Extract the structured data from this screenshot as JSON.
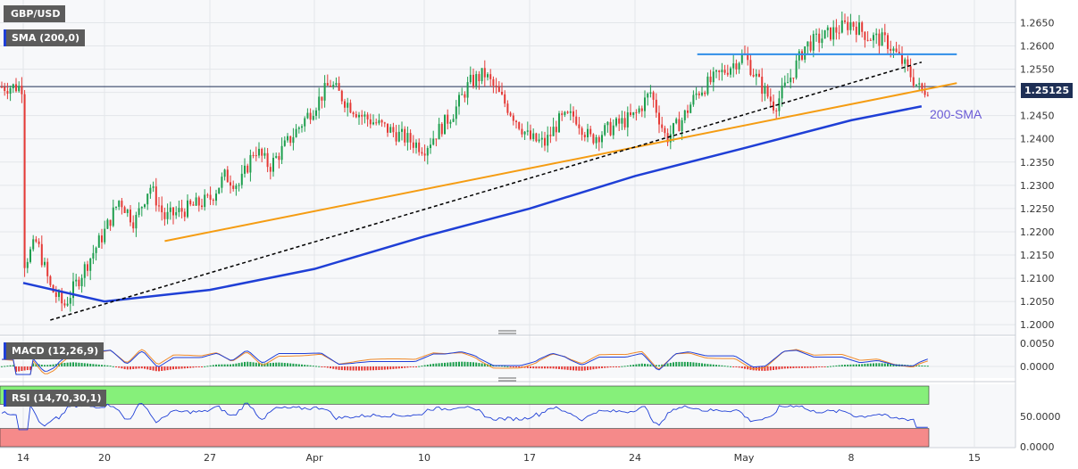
{
  "window": {
    "symbol": "GBP/USD",
    "indicator": "SMA (200,0)",
    "current_price": "1.25125",
    "annotation": "200-SMA"
  },
  "macd": {
    "label": "MACD (12,26,9)",
    "ticks": [
      "0.0050",
      "0.0000"
    ]
  },
  "rsi": {
    "label": "RSI (14,70,30,1)",
    "ticks": [
      "50.0000",
      "0.0000"
    ]
  },
  "colors": {
    "sma": "#1f3fd6",
    "support_line": "#f59c12",
    "resistance": "#2f8ee8",
    "trend_dashed": "#000000",
    "bull": "#1e9e4e",
    "bear": "#e53935",
    "macd_line": "#1f3fd6",
    "signal_line": "#f08a2a",
    "rsi_overbought": "#86f07a",
    "rsi_oversold": "#f58a8a"
  },
  "chart_data": {
    "type": "candlestick",
    "title": "GBP/USD",
    "x_ticks": [
      "14",
      "20",
      "27",
      "Apr",
      "10",
      "17",
      "24",
      "May",
      "8",
      "15"
    ],
    "y_ticks": [
      "1.2650",
      "1.2600",
      "1.2550",
      "1.2500",
      "1.2450",
      "1.2400",
      "1.2350",
      "1.2300",
      "1.2250",
      "1.2200",
      "1.2150",
      "1.2100",
      "1.2050",
      "1.2000"
    ],
    "ylim": [
      1.1985,
      1.2695
    ],
    "close_path": [
      [
        "Mar 14",
        1.213
      ],
      [
        "Mar 15",
        1.218
      ],
      [
        "Mar 16",
        1.208
      ],
      [
        "Mar 17",
        1.204
      ],
      [
        "Mar 20",
        1.22
      ],
      [
        "Mar 21",
        1.227
      ],
      [
        "Mar 22",
        1.222
      ],
      [
        "Mar 23",
        1.23
      ],
      [
        "Mar 24",
        1.223
      ],
      [
        "Mar 27",
        1.227
      ],
      [
        "Mar 28",
        1.232
      ],
      [
        "Mar 29",
        1.23
      ],
      [
        "Mar 30",
        1.238
      ],
      [
        "Mar 31",
        1.234
      ],
      [
        "Apr 3",
        1.247
      ],
      [
        "Apr 4",
        1.252
      ],
      [
        "Apr 5",
        1.248
      ],
      [
        "Apr 6",
        1.245
      ],
      [
        "Apr 10",
        1.238
      ],
      [
        "Apr 11",
        1.242
      ],
      [
        "Apr 12",
        1.246
      ],
      [
        "Apr 13",
        1.252
      ],
      [
        "Apr 14",
        1.254
      ],
      [
        "Apr 17",
        1.24
      ],
      [
        "Apr 18",
        1.239
      ],
      [
        "Apr 19",
        1.244
      ],
      [
        "Apr 20",
        1.245
      ],
      [
        "Apr 21",
        1.24
      ],
      [
        "Apr 24",
        1.245
      ],
      [
        "Apr 25",
        1.25
      ],
      [
        "Apr 26",
        1.24
      ],
      [
        "Apr 27",
        1.244
      ],
      [
        "Apr 28",
        1.25
      ],
      [
        "May 1",
        1.258
      ],
      [
        "May 2",
        1.252
      ],
      [
        "May 3",
        1.247
      ],
      [
        "May 4",
        1.253
      ],
      [
        "May 5",
        1.26
      ],
      [
        "May 8",
        1.265
      ],
      [
        "May 9",
        1.262
      ],
      [
        "May 10",
        1.261
      ],
      [
        "May 11",
        1.256
      ],
      [
        "May 12",
        1.25
      ],
      [
        "May 12b",
        1.2512
      ]
    ],
    "sma200": [
      [
        "Mar 14",
        1.209
      ],
      [
        "Mar 20",
        1.205
      ],
      [
        "Mar 27",
        1.2075
      ],
      [
        "Apr 3",
        1.212
      ],
      [
        "Apr 10",
        1.219
      ],
      [
        "Apr 17",
        1.225
      ],
      [
        "Apr 24",
        1.232
      ],
      [
        "May 1",
        1.238
      ],
      [
        "May 8",
        1.244
      ],
      [
        "May 12",
        1.247
      ]
    ],
    "support_line": [
      [
        "Mar 24",
        1.218
      ],
      [
        "May 14",
        1.252
      ]
    ],
    "resistance_line": {
      "y": 1.2582,
      "from": "Apr 28",
      "to": "May 14"
    },
    "dashed_trend": [
      [
        "Mar 16",
        1.201
      ],
      [
        "May 12",
        1.2565
      ]
    ]
  }
}
